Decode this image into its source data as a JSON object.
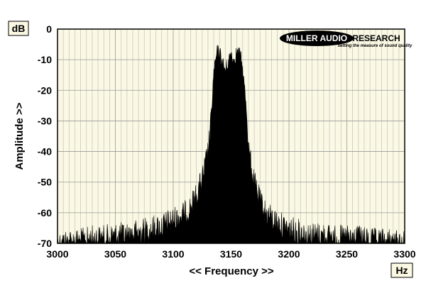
{
  "chart_data": {
    "type": "area",
    "title": "",
    "xlabel": "<< Frequency >>",
    "ylabel": "Amplitude >>",
    "x_unit": "Hz",
    "y_unit": "dB",
    "xlim": [
      3000,
      3300
    ],
    "ylim": [
      -70,
      0
    ],
    "x_ticks": [
      "3000",
      "3050",
      "3100",
      "3150",
      "3200",
      "3250",
      "3300"
    ],
    "y_ticks": [
      "0",
      "-10",
      "-20",
      "-30",
      "-40",
      "-50",
      "-60",
      "-70"
    ],
    "grid": true,
    "background_color": "#fbf9e3",
    "series_color": "#000000",
    "series": [
      {
        "x": [
          3000,
          3010,
          3020,
          3030,
          3040,
          3050,
          3060,
          3070,
          3080,
          3090,
          3100,
          3110,
          3115,
          3120,
          3125,
          3130,
          3133,
          3135,
          3138,
          3140,
          3142,
          3145,
          3148,
          3150,
          3152,
          3155,
          3158,
          3160,
          3163,
          3165,
          3170,
          3175,
          3180,
          3190,
          3200,
          3210,
          3220,
          3230,
          3240,
          3250,
          3260,
          3270,
          3280,
          3290,
          3300
        ],
        "values": [
          -66,
          -65,
          -65,
          -64,
          -64,
          -63,
          -63,
          -62,
          -61,
          -60,
          -58,
          -56,
          -54,
          -50,
          -45,
          -36,
          -25,
          -12,
          -5,
          -5,
          -8,
          -11,
          -8,
          -5,
          -8,
          -5,
          -6,
          -11,
          -22,
          -35,
          -46,
          -52,
          -56,
          -59,
          -61,
          -62,
          -63,
          -63,
          -64,
          -64,
          -64,
          -65,
          -65,
          -65,
          -66
        ]
      }
    ]
  },
  "logo": {
    "brand": "MILLER AUDIO",
    "brand2": "RESEARCH",
    "tagline": "setting the measure of sound quality"
  }
}
